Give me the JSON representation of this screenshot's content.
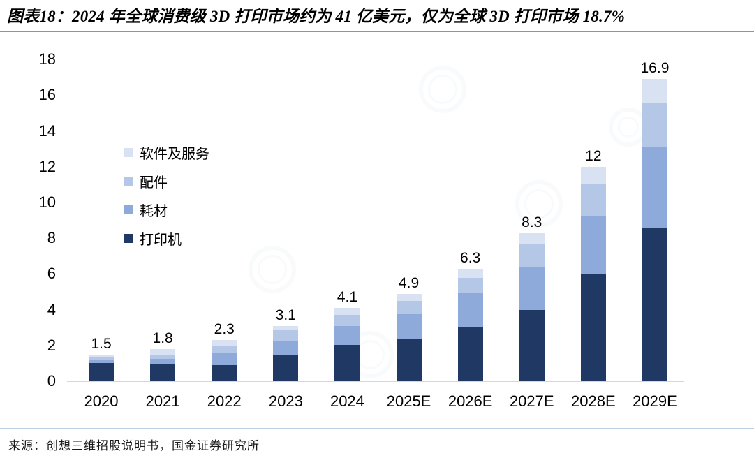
{
  "title": "图表18：2024 年全球消费级 3D 打印市场约为 41 亿美元，仅为全球 3D 打印市场 18.7%",
  "source": "来源：创想三维招股说明书，国金证券研究所",
  "colors": {
    "printer": "#1f3864",
    "consumables": "#8eaadb",
    "accessories": "#b4c7e7",
    "software": "#d9e2f3",
    "title_divider": "#7e97b5",
    "bottom_divider": "#bccfe0",
    "axis_line": "#d7d7d7"
  },
  "chart_data": {
    "type": "bar",
    "stacked": true,
    "title": "图表18：2024 年全球消费级 3D 打印市场约为 41 亿美元，仅为全球 3D 打印市场 18.7%",
    "xlabel": "",
    "ylabel": "",
    "categories": [
      "2020",
      "2021",
      "2022",
      "2023",
      "2024",
      "2025E",
      "2026E",
      "2027E",
      "2028E",
      "2029E"
    ],
    "series": [
      {
        "name": "打印机",
        "color": "#1f3864",
        "values": [
          1.0,
          0.95,
          0.9,
          1.45,
          2.05,
          2.4,
          3.0,
          4.0,
          6.0,
          8.6
        ]
      },
      {
        "name": "耗材",
        "color": "#8eaadb",
        "values": [
          0.2,
          0.3,
          0.7,
          0.8,
          1.05,
          1.35,
          1.95,
          2.35,
          3.25,
          4.5
        ]
      },
      {
        "name": "配件",
        "color": "#b4c7e7",
        "values": [
          0.15,
          0.25,
          0.35,
          0.6,
          0.6,
          0.75,
          0.85,
          1.3,
          1.75,
          2.5
        ]
      },
      {
        "name": "软件及服务",
        "color": "#d9e2f3",
        "values": [
          0.15,
          0.3,
          0.35,
          0.25,
          0.4,
          0.4,
          0.5,
          0.65,
          1.0,
          1.3
        ]
      }
    ],
    "totals": [
      1.5,
      1.8,
      2.3,
      3.1,
      4.1,
      4.9,
      6.3,
      8.3,
      12,
      16.9
    ],
    "total_labels": [
      "1.5",
      "1.8",
      "2.3",
      "3.1",
      "4.1",
      "4.9",
      "6.3",
      "8.3",
      "12",
      "16.9"
    ],
    "yticks": [
      0,
      2,
      4,
      6,
      8,
      10,
      12,
      14,
      16,
      18
    ],
    "ylim": [
      0,
      18
    ],
    "grid": false,
    "legend_order": [
      "软件及服务",
      "配件",
      "耗材",
      "打印机"
    ],
    "legend_position": "upper-left-inside"
  }
}
